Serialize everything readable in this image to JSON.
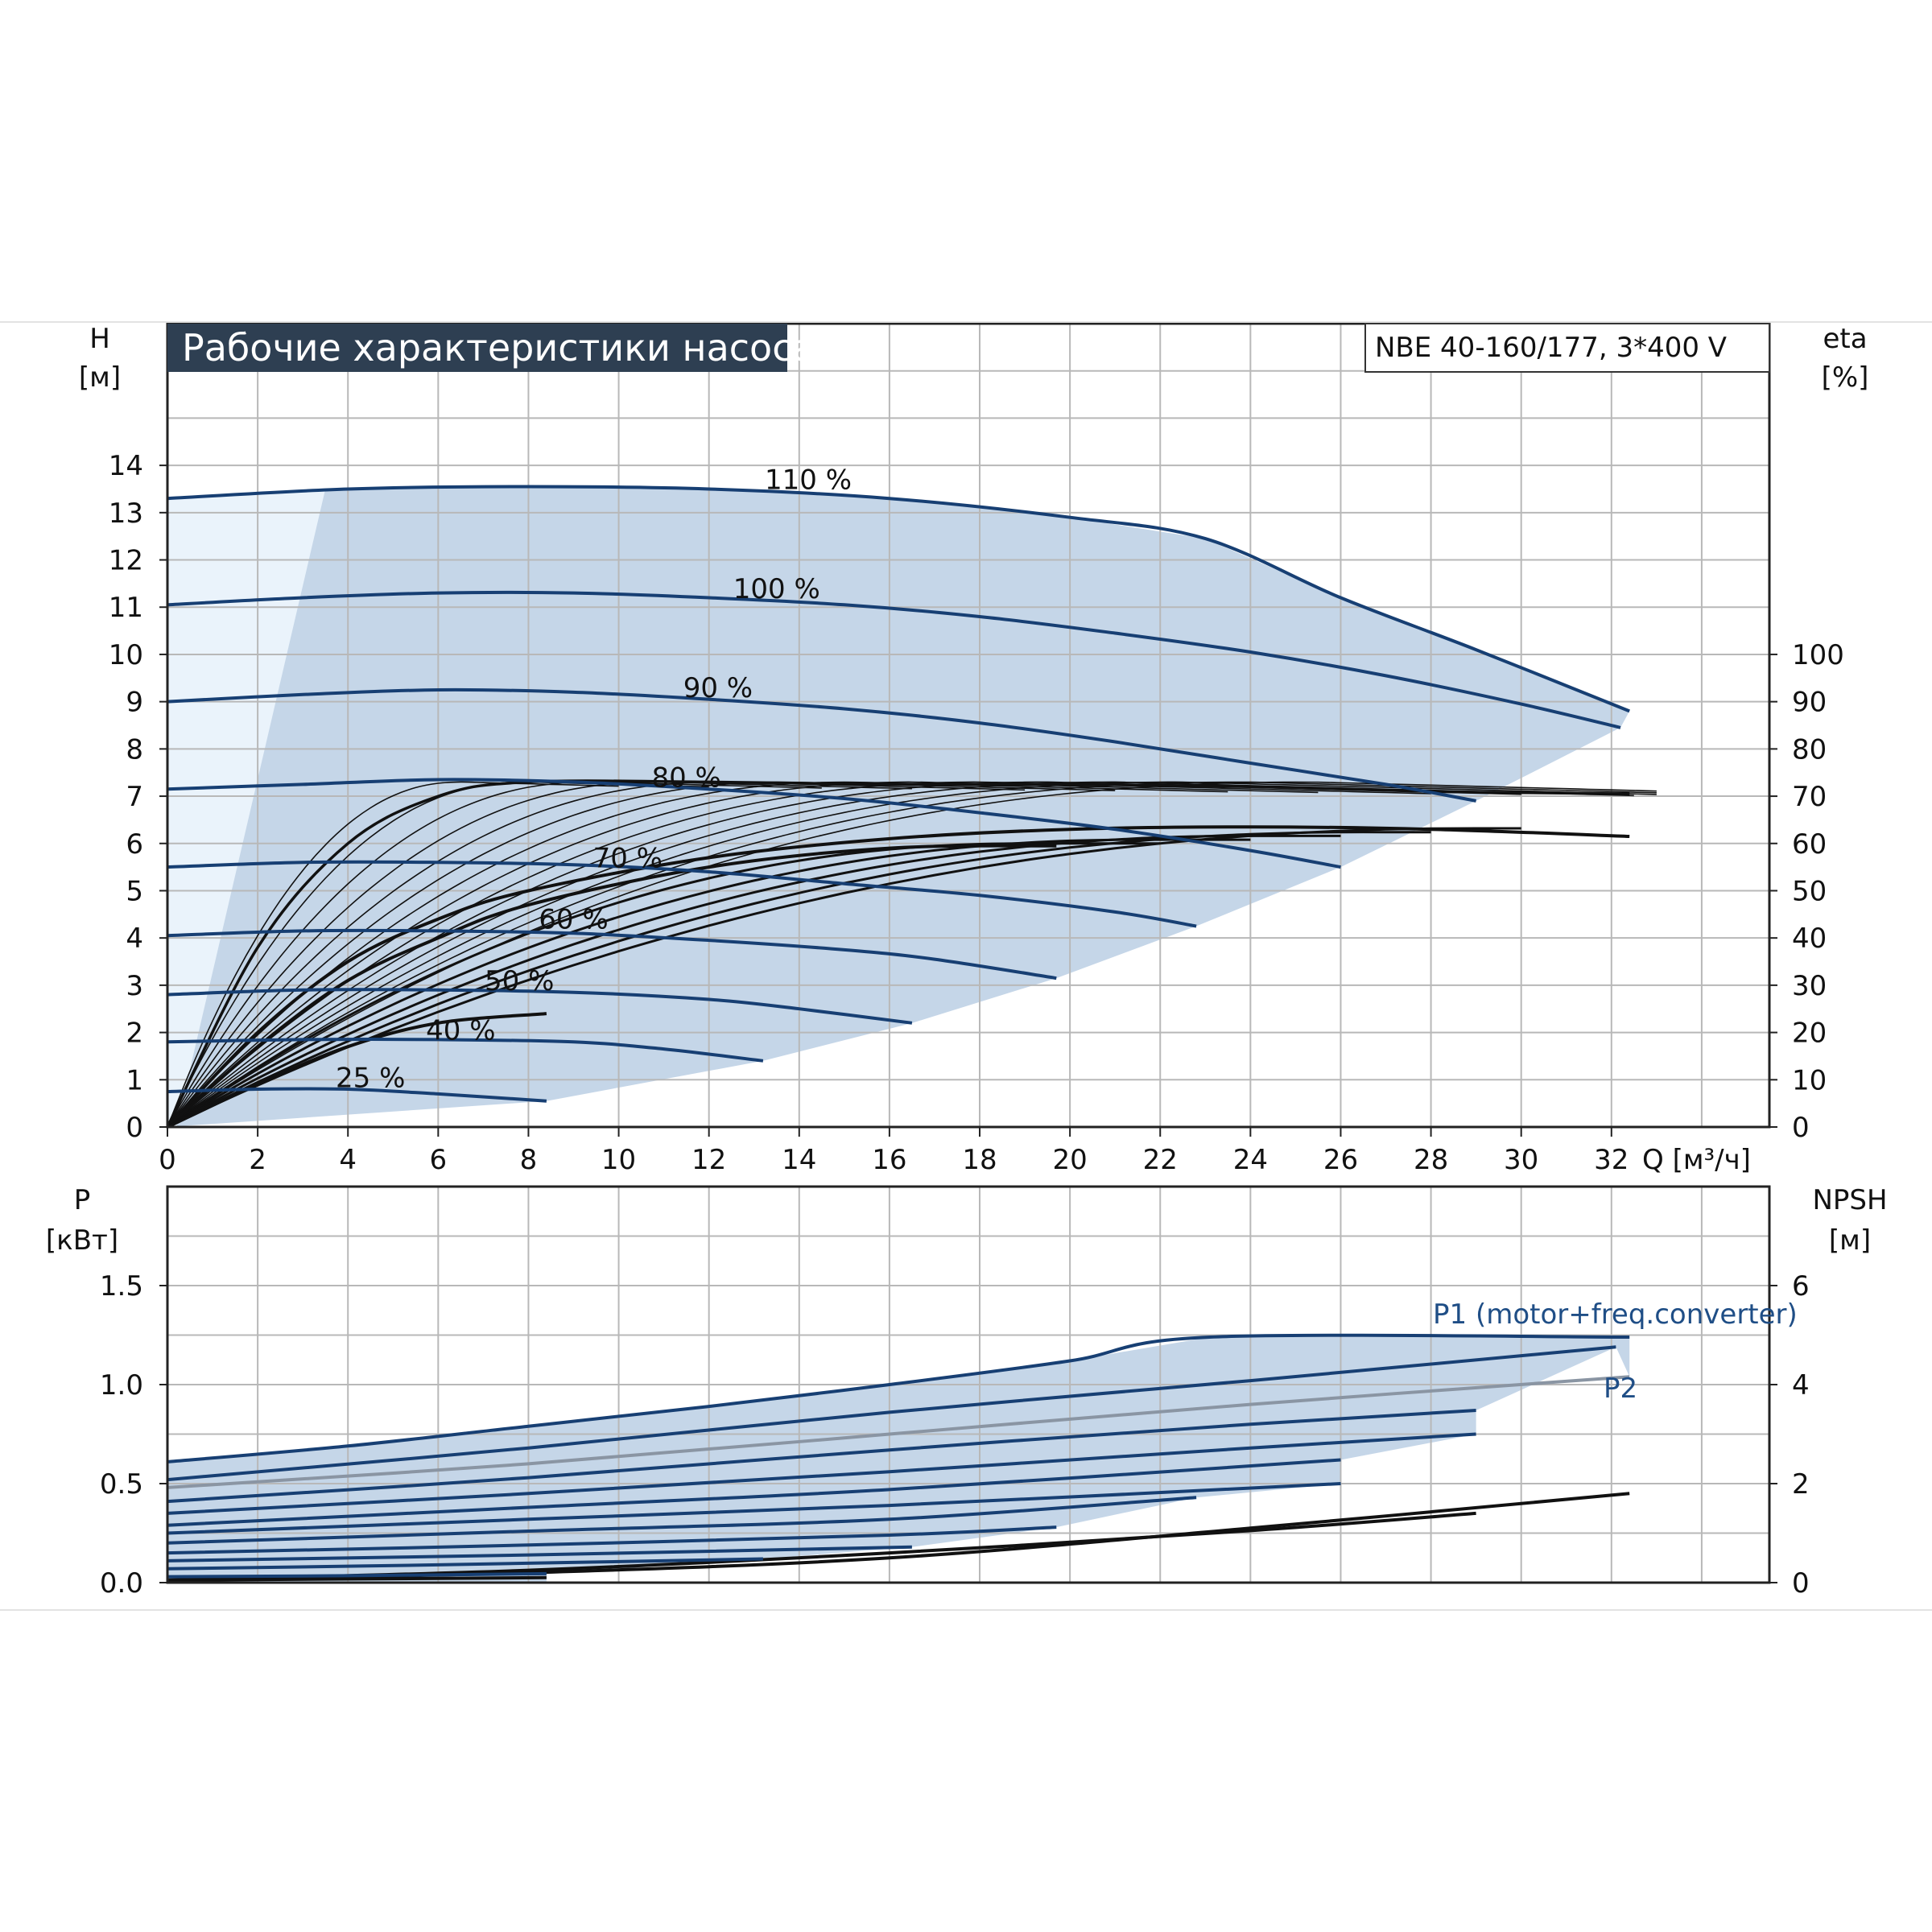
{
  "title": "Рабочие характеристики насоса",
  "model": "NBE 40-160/177, 3*400 V",
  "colors": {
    "curve": "#173f73",
    "eff": "#111111",
    "region": "#c5d6e8",
    "region_light": "#eaf3fb",
    "grid": "#b8b8b8",
    "title_bg": "#2e3f52"
  },
  "top_chart": {
    "y_label": [
      "H",
      "[м]"
    ],
    "y2_label": [
      "eta",
      "[%]"
    ],
    "x_label": "Q [м³/ч]",
    "x_ticks": [
      "0",
      "2",
      "4",
      "6",
      "8",
      "10",
      "12",
      "14",
      "16",
      "18",
      "20",
      "22",
      "24",
      "26",
      "28",
      "30",
      "32"
    ],
    "y_ticks": [
      "0",
      "1",
      "2",
      "3",
      "4",
      "5",
      "6",
      "7",
      "8",
      "9",
      "10",
      "11",
      "12",
      "13",
      "14"
    ],
    "y2_ticks": [
      "0",
      "10",
      "20",
      "30",
      "40",
      "50",
      "60",
      "70",
      "80",
      "90",
      "100"
    ],
    "speed_labels": [
      "110 %",
      "100 %",
      "90 %",
      "80 %",
      "70 %",
      "60 %",
      "50 %",
      "40 %",
      "25 %"
    ]
  },
  "bottom_chart": {
    "y_label": [
      "P",
      "[кВт]"
    ],
    "y2_label": [
      "NPSH",
      "[м]"
    ],
    "y_ticks": [
      "0.0",
      "0.5",
      "1.0",
      "1.5"
    ],
    "y2_ticks": [
      "0",
      "2",
      "4",
      "6"
    ],
    "p1_label": "P1 (motor+freq.converter)",
    "p2_label": "P2"
  },
  "chart_data": [
    {
      "type": "line",
      "title": "Рабочие характеристики насоса",
      "xlabel": "Q [м³/ч]",
      "ylabel": "H [м]",
      "y2label": "eta [%]",
      "xlim": [
        0,
        35.5
      ],
      "ylim": [
        0,
        17
      ],
      "y2lim": [
        0,
        170
      ],
      "grid": true,
      "series": [
        {
          "name": "110 %",
          "x": [
            0,
            4,
            8,
            12,
            16,
            20,
            23,
            26,
            29,
            32.4
          ],
          "y": [
            13.3,
            13.5,
            13.55,
            13.5,
            13.3,
            12.9,
            12.45,
            11.2,
            10.1,
            8.8
          ]
        },
        {
          "name": "100 %",
          "x": [
            0,
            3,
            6,
            9,
            12,
            15,
            18,
            21,
            24,
            27,
            30,
            32.2
          ],
          "y": [
            11.05,
            11.2,
            11.3,
            11.3,
            11.2,
            11.05,
            10.8,
            10.45,
            10.05,
            9.55,
            8.95,
            8.45
          ]
        },
        {
          "name": "90 %",
          "x": [
            0,
            3,
            6,
            9,
            12,
            15,
            18,
            21,
            24,
            27,
            29
          ],
          "y": [
            9.0,
            9.15,
            9.25,
            9.2,
            9.05,
            8.85,
            8.55,
            8.15,
            7.7,
            7.25,
            6.9
          ]
        },
        {
          "name": "80 %",
          "x": [
            0,
            3,
            6,
            9,
            12,
            15,
            18,
            21,
            24,
            26
          ],
          "y": [
            7.15,
            7.25,
            7.35,
            7.3,
            7.15,
            6.95,
            6.65,
            6.3,
            5.85,
            5.5
          ]
        },
        {
          "name": "70 %",
          "x": [
            0,
            3,
            6,
            9,
            12,
            15,
            18,
            21,
            22.8
          ],
          "y": [
            5.5,
            5.6,
            5.6,
            5.55,
            5.4,
            5.15,
            4.9,
            4.55,
            4.25
          ]
        },
        {
          "name": "60 %",
          "x": [
            0,
            3,
            6,
            9,
            12,
            15,
            17,
            19.7
          ],
          "y": [
            4.05,
            4.15,
            4.15,
            4.1,
            3.95,
            3.75,
            3.55,
            3.15
          ]
        },
        {
          "name": "50 %",
          "x": [
            0,
            3,
            6,
            9,
            12,
            14,
            16.5
          ],
          "y": [
            2.8,
            2.9,
            2.9,
            2.85,
            2.7,
            2.5,
            2.2
          ]
        },
        {
          "name": "40 %",
          "x": [
            0,
            3,
            6,
            9,
            11,
            13.2
          ],
          "y": [
            1.8,
            1.85,
            1.85,
            1.8,
            1.65,
            1.4
          ]
        },
        {
          "name": "25 %",
          "x": [
            0,
            2,
            4,
            6,
            8.4
          ],
          "y": [
            0.75,
            0.8,
            0.8,
            0.7,
            0.55
          ]
        }
      ],
      "efficiency_series": [
        {
          "x": [
            0,
            2,
            4,
            6,
            8,
            12,
            16,
            20,
            24,
            28,
            32.4
          ],
          "y": [
            0,
            38,
            60,
            70,
            73,
            73,
            72.5,
            72.5,
            72,
            71,
            70.5
          ]
        },
        {
          "x": [
            0,
            2,
            4,
            6,
            8,
            12,
            16,
            20,
            24,
            28,
            32.4
          ],
          "y": [
            0,
            20,
            35,
            44,
            50,
            57,
            61,
            63,
            63.5,
            63,
            61.5
          ]
        },
        {
          "x": [
            0,
            2,
            4,
            6,
            8,
            12,
            16,
            19.7
          ],
          "y": [
            0,
            17,
            31,
            40,
            47,
            55,
            59,
            59.5
          ]
        },
        {
          "x": [
            0,
            2,
            4,
            6,
            8.4
          ],
          "y": [
            0,
            9,
            17,
            22,
            24
          ]
        }
      ]
    },
    {
      "type": "line",
      "xlabel": "Q [м³/ч]",
      "ylabel": "P [кВт]",
      "y2label": "NPSH [м]",
      "xlim": [
        0,
        35.5
      ],
      "ylim": [
        0,
        2.0
      ],
      "y2lim": [
        0,
        8
      ],
      "grid": true,
      "series": [
        {
          "name": "P1 (motor+freq.converter)",
          "x": [
            0,
            4,
            8,
            12,
            16,
            20,
            23.1,
            32.4
          ],
          "y": [
            0.61,
            0.69,
            0.79,
            0.89,
            1.0,
            1.12,
            1.24,
            1.24
          ]
        },
        {
          "name": "P2",
          "x": [
            0,
            8,
            16,
            24,
            32.4
          ],
          "y": [
            0.48,
            0.6,
            0.75,
            0.9,
            1.04
          ]
        },
        {
          "x": [
            0,
            8,
            16,
            24,
            32.1
          ],
          "y": [
            0.52,
            0.68,
            0.86,
            1.02,
            1.19
          ]
        },
        {
          "x": [
            0,
            8,
            16,
            24,
            29
          ],
          "y": [
            0.41,
            0.53,
            0.67,
            0.8,
            0.87
          ]
        },
        {
          "x": [
            0,
            8,
            16,
            24,
            29
          ],
          "y": [
            0.35,
            0.45,
            0.56,
            0.68,
            0.75
          ]
        },
        {
          "x": [
            0,
            8,
            16,
            26
          ],
          "y": [
            0.29,
            0.38,
            0.47,
            0.62
          ]
        },
        {
          "x": [
            0,
            8,
            16,
            26
          ],
          "y": [
            0.25,
            0.32,
            0.39,
            0.5
          ]
        },
        {
          "x": [
            0,
            8,
            16,
            22.8
          ],
          "y": [
            0.2,
            0.26,
            0.32,
            0.43
          ]
        },
        {
          "x": [
            0,
            8,
            16,
            19.7
          ],
          "y": [
            0.15,
            0.19,
            0.24,
            0.28
          ]
        },
        {
          "x": [
            0,
            8,
            16.5
          ],
          "y": [
            0.11,
            0.14,
            0.18
          ]
        },
        {
          "x": [
            0,
            6,
            13.2
          ],
          "y": [
            0.07,
            0.09,
            0.12
          ]
        },
        {
          "x": [
            0,
            4,
            8.4
          ],
          "y": [
            0.03,
            0.035,
            0.045
          ]
        }
      ],
      "npsh_series": [
        {
          "x": [
            0,
            8,
            16,
            24,
            32.4
          ],
          "y": [
            0.05,
            0.2,
            0.5,
            1.1,
            1.8
          ]
        },
        {
          "x": [
            0,
            8,
            16,
            24,
            29
          ],
          "y": [
            0.05,
            0.25,
            0.6,
            1.05,
            1.4
          ]
        },
        {
          "x": [
            0,
            8.4
          ],
          "y": [
            0.05,
            0.1
          ]
        }
      ]
    }
  ]
}
